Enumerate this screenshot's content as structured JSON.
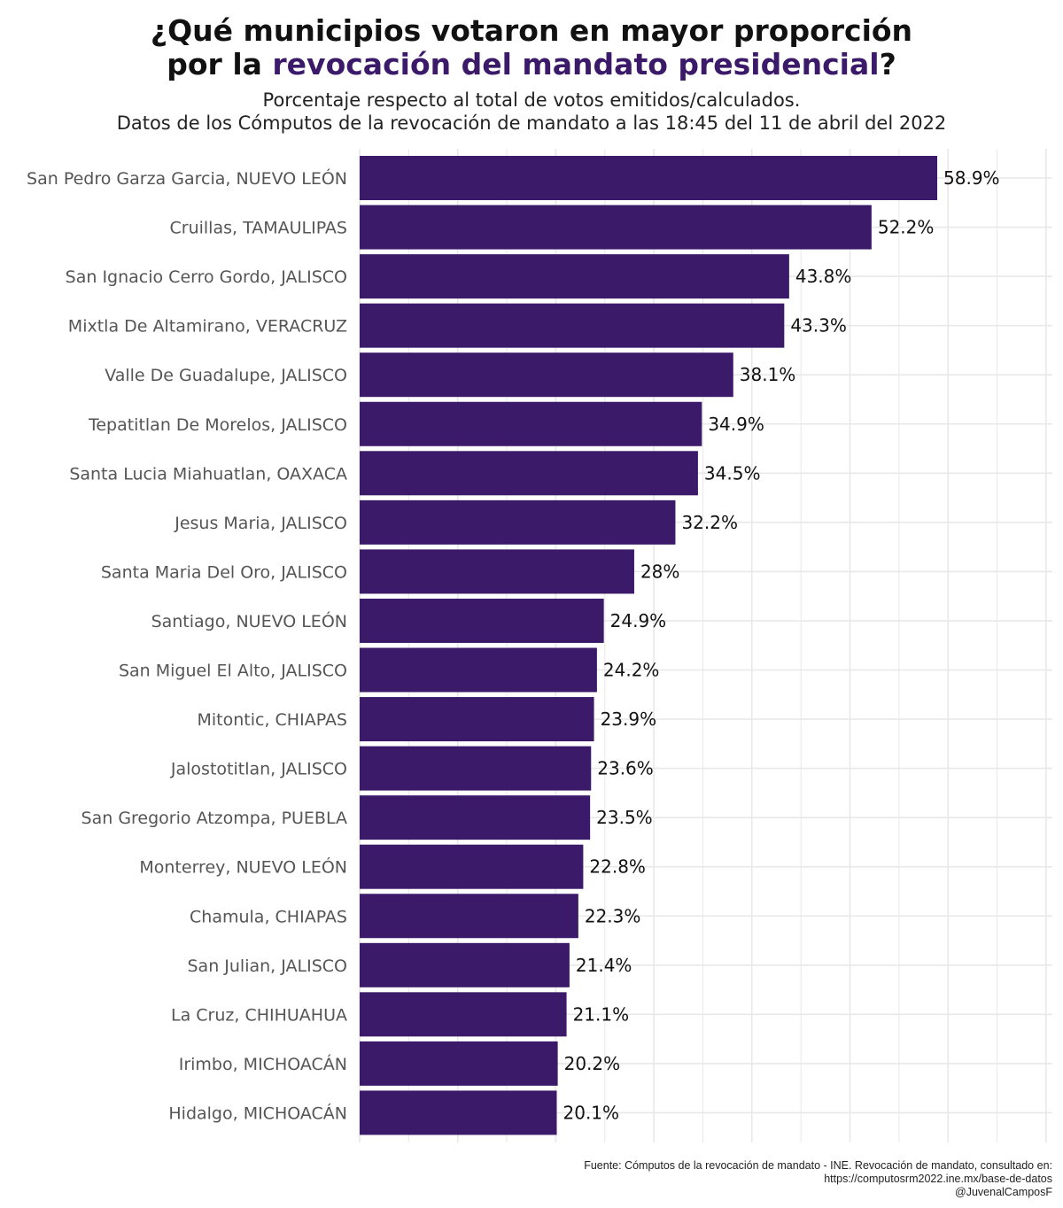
{
  "header": {
    "title_line1": "¿Qué municipios votaron en mayor proporción",
    "title_line2_prefix": "por la ",
    "title_line2_highlight": "revocación del mandato presidencial",
    "title_line2_suffix": "?",
    "subtitle_line1": "Porcentaje respecto al total de votos emitidos/calculados.",
    "subtitle_line2": "Datos de los Cómputos de la revocación de mandato a las 18:45 del 11 de abril del 2022"
  },
  "colors": {
    "bar": "#3b1a69",
    "highlight": "#3b1a69",
    "grid": "#e8e8e8"
  },
  "chart_data": {
    "type": "bar",
    "orientation": "horizontal",
    "categories": [
      "San Pedro Garza Garcia, NUEVO LEÓN",
      "Cruillas, TAMAULIPAS",
      "San Ignacio Cerro Gordo, JALISCO",
      "Mixtla De Altamirano, VERACRUZ",
      "Valle De Guadalupe, JALISCO",
      "Tepatitlan De Morelos, JALISCO",
      "Santa Lucia Miahuatlan, OAXACA",
      "Jesus Maria, JALISCO",
      "Santa Maria Del Oro, JALISCO",
      "Santiago, NUEVO LEÓN",
      "San Miguel El Alto, JALISCO",
      "Mitontic, CHIAPAS",
      "Jalostotitlan, JALISCO",
      "San Gregorio Atzompa, PUEBLA",
      "Monterrey, NUEVO LEÓN",
      "Chamula, CHIAPAS",
      "San Julian, JALISCO",
      "La Cruz, CHIHUAHUA",
      "Irimbo, MICHOACÁN",
      "Hidalgo, MICHOACÁN"
    ],
    "values": [
      58.9,
      52.2,
      43.8,
      43.3,
      38.1,
      34.9,
      34.5,
      32.2,
      28,
      24.9,
      24.2,
      23.9,
      23.6,
      23.5,
      22.8,
      22.3,
      21.4,
      21.1,
      20.2,
      20.1
    ],
    "value_labels": [
      "58.9%",
      "52.2%",
      "43.8%",
      "43.3%",
      "38.1%",
      "34.9%",
      "34.5%",
      "32.2%",
      "28%",
      "24.9%",
      "24.2%",
      "23.9%",
      "23.6%",
      "23.5%",
      "22.8%",
      "22.3%",
      "21.4%",
      "21.1%",
      "20.2%",
      "20.1%"
    ],
    "xlim": [
      0,
      70
    ],
    "grid": true
  },
  "caption": {
    "line1": "Fuente: Cómputos de la revocación de mandato - INE. Revocación de mandato, consultado en:",
    "line2": "https://computosrm2022.ine.mx/base-de-datos",
    "line3": "@JuvenalCamposF"
  }
}
